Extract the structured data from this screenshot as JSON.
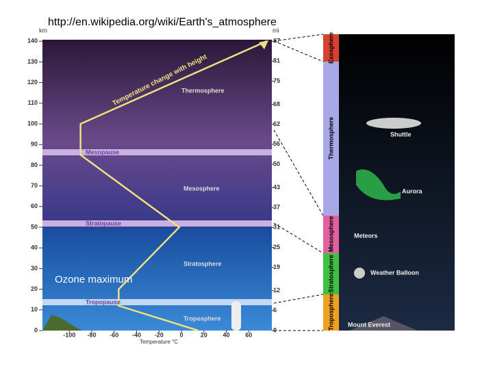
{
  "header": {
    "url": "http://en.wikipedia.org/wiki/Earth's_atmosphere"
  },
  "chart": {
    "km_label": "km",
    "mi_label": "mi",
    "x_label": "Temperature °C",
    "km_ticks": [
      0,
      10,
      20,
      30,
      40,
      50,
      60,
      70,
      80,
      90,
      100,
      110,
      120,
      130,
      140
    ],
    "mi_ticks": [
      0,
      6,
      12,
      19,
      25,
      31,
      37,
      43,
      50,
      56,
      62,
      68,
      75,
      81,
      87
    ],
    "temp_ticks": [
      -100,
      -80,
      -60,
      -40,
      -20,
      0,
      20,
      40,
      60
    ],
    "curve_label": "Temperature change with height",
    "layers": [
      "Thermosphere",
      "Mesopause",
      "Mesosphere",
      "Stratopause",
      "Stratosphere",
      "Tropopause",
      "Troposphere"
    ],
    "profile": {
      "temperature": [
        15,
        -56,
        -56,
        -2,
        -90,
        -90,
        76
      ],
      "altitude": [
        0,
        12,
        20,
        50,
        85,
        100,
        140
      ]
    },
    "annotation": "Ozone maximum"
  },
  "panel": {
    "layers": [
      "Exosphere",
      "Thermosphere",
      "Mesosphere",
      "Stratosphere",
      "Troposphere"
    ],
    "items": [
      "Shuttle",
      "Aurora",
      "Meteors",
      "Weather Balloon",
      "Mount Everest"
    ]
  }
}
